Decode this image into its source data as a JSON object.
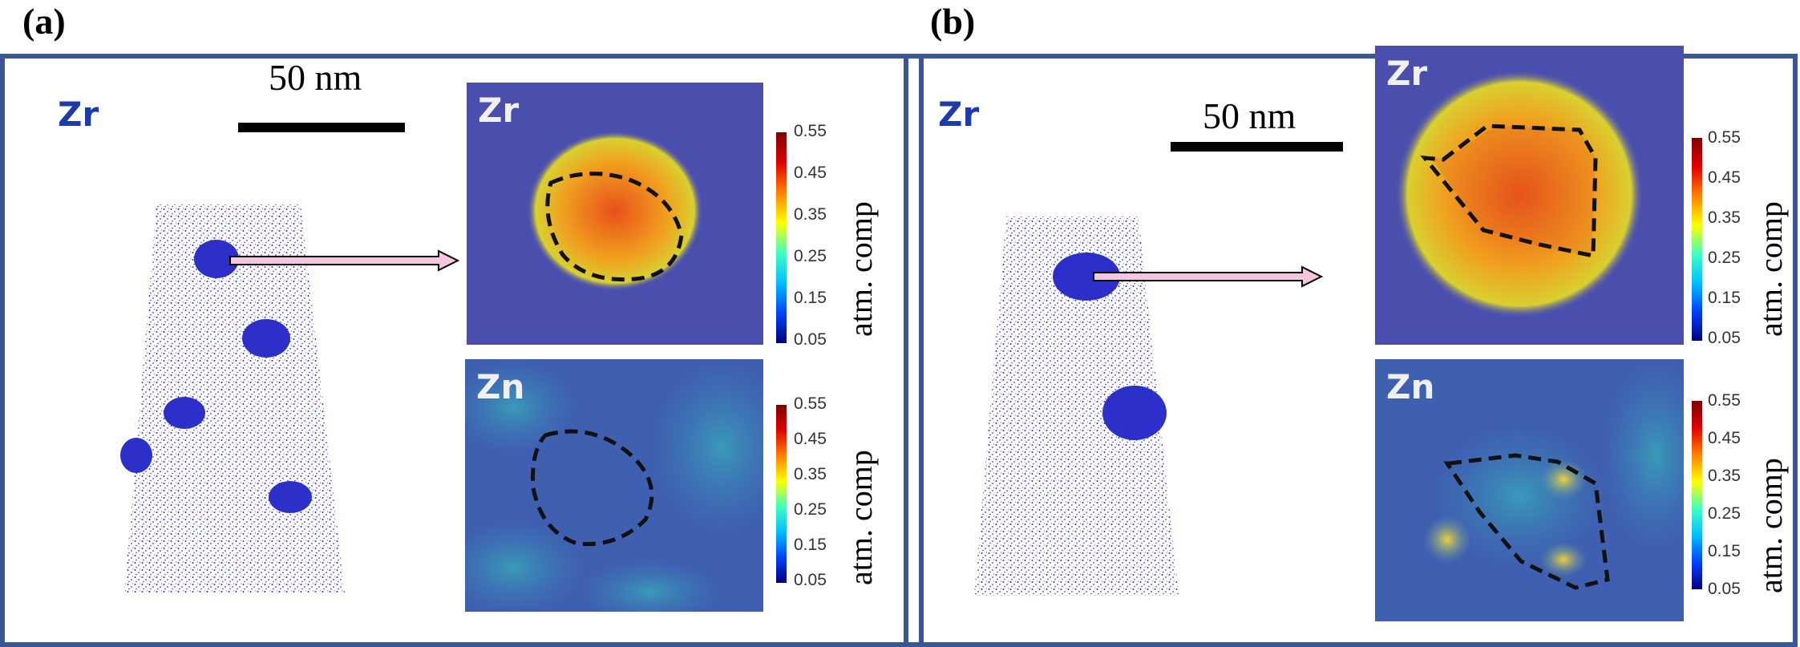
{
  "panels": [
    {
      "label": "(a)",
      "element": "Zr",
      "scale_bar": "50 nm",
      "maps": [
        {
          "element": "Zr",
          "colorbar_ticks": [
            "0.55",
            "0.45",
            "0.35",
            "0.25",
            "0.15",
            "0.05"
          ],
          "colorbar_label": "atm. comp"
        },
        {
          "element": "Zn",
          "colorbar_ticks": [
            "0.55",
            "0.45",
            "0.35",
            "0.25",
            "0.15",
            "0.05"
          ],
          "colorbar_label": "atm. comp"
        }
      ]
    },
    {
      "label": "(b)",
      "element": "Zr",
      "scale_bar": "50 nm",
      "maps": [
        {
          "element": "Zr",
          "colorbar_ticks": [
            "0.55",
            "0.45",
            "0.35",
            "0.25",
            "0.15",
            "0.05"
          ],
          "colorbar_label": "atm. comp"
        },
        {
          "element": "Zn",
          "colorbar_ticks": [
            "0.55",
            "0.45",
            "0.35",
            "0.25",
            "0.15",
            "0.05"
          ],
          "colorbar_label": "atm. comp"
        }
      ]
    }
  ],
  "colors": {
    "frame": "#3b5694",
    "map_background": "#4a4fae",
    "atoms": "#2a2fd0",
    "arrow": "#f4c6e0"
  },
  "colormap": "jet",
  "colorbar_range": [
    0.05,
    0.55
  ]
}
